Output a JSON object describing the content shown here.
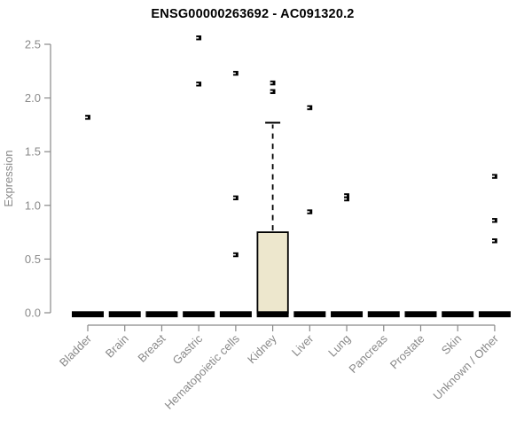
{
  "chart_data": {
    "type": "boxplot",
    "title": "ENSG00000263692 - AC091320.2",
    "ylabel": "Expression",
    "xlabel": "",
    "ylim": [
      0,
      2.5
    ],
    "yticks": [
      0.0,
      0.5,
      1.0,
      1.5,
      2.0,
      2.5
    ],
    "ytick_labels": [
      "0.0",
      "0.5",
      "1.0",
      "1.5",
      "2.0",
      "2.5"
    ],
    "categories": [
      "Bladder",
      "Brain",
      "Breast",
      "Gastric",
      "Hematopoietic cells",
      "Kidney",
      "Liver",
      "Lung",
      "Pancreas",
      "Prostate",
      "Skin",
      "Unknown / Other"
    ],
    "grid": "off",
    "legend": "none",
    "boxes": [
      {
        "category": "Bladder",
        "whisker_low": 0,
        "q1": 0,
        "median": 0,
        "q3": 0,
        "whisker_high": 0,
        "outliers": [
          1.82
        ]
      },
      {
        "category": "Brain",
        "whisker_low": 0,
        "q1": 0,
        "median": 0,
        "q3": 0,
        "whisker_high": 0,
        "outliers": []
      },
      {
        "category": "Breast",
        "whisker_low": 0,
        "q1": 0,
        "median": 0,
        "q3": 0,
        "whisker_high": 0,
        "outliers": []
      },
      {
        "category": "Gastric",
        "whisker_low": 0,
        "q1": 0,
        "median": 0,
        "q3": 0,
        "whisker_high": 0,
        "outliers": [
          2.56,
          2.13
        ]
      },
      {
        "category": "Hematopoietic cells",
        "whisker_low": 0,
        "q1": 0,
        "median": 0,
        "q3": 0,
        "whisker_high": 0,
        "outliers": [
          2.23,
          1.07,
          0.54
        ]
      },
      {
        "category": "Kidney",
        "whisker_low": 0,
        "q1": 0,
        "median": 0,
        "q3": 0.75,
        "whisker_high": 1.77,
        "outliers": [
          2.14,
          2.06
        ]
      },
      {
        "category": "Liver",
        "whisker_low": 0,
        "q1": 0,
        "median": 0,
        "q3": 0,
        "whisker_high": 0,
        "outliers": [
          1.91,
          0.94
        ]
      },
      {
        "category": "Lung",
        "whisker_low": 0,
        "q1": 0,
        "median": 0,
        "q3": 0,
        "whisker_high": 0,
        "outliers": [
          1.09,
          1.06
        ]
      },
      {
        "category": "Pancreas",
        "whisker_low": 0,
        "q1": 0,
        "median": 0,
        "q3": 0,
        "whisker_high": 0,
        "outliers": []
      },
      {
        "category": "Prostate",
        "whisker_low": 0,
        "q1": 0,
        "median": 0,
        "q3": 0,
        "whisker_high": 0,
        "outliers": []
      },
      {
        "category": "Skin",
        "whisker_low": 0,
        "q1": 0,
        "median": 0,
        "q3": 0,
        "whisker_high": 0,
        "outliers": []
      },
      {
        "category": "Unknown / Other",
        "whisker_low": 0,
        "q1": 0,
        "median": 0,
        "q3": 0,
        "whisker_high": 0,
        "outliers": [
          1.27,
          0.86,
          0.67
        ]
      }
    ],
    "colors": {
      "box_fill": "#ede7cd",
      "box_border": "#000000",
      "median": "#000000",
      "outlier": "#000000",
      "axis": "#898989",
      "title": "#000000",
      "background": "#ffffff"
    }
  }
}
